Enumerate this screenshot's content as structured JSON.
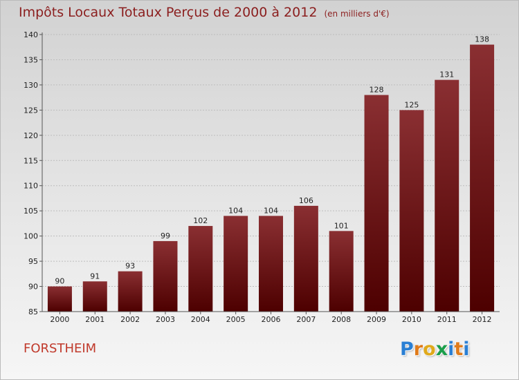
{
  "title": {
    "main": "Impôts Locaux Totaux Perçus de 2000 à 2012",
    "unit": "(en milliers d'€)"
  },
  "commune": "FORSTHEIM",
  "logo": {
    "letters": [
      "P",
      "r",
      "o",
      "x",
      "i",
      "t",
      "i"
    ],
    "colors": [
      "#2a7fd4",
      "#e07b1a",
      "#e0a91a",
      "#1a9e4a",
      "#2a7fd4",
      "#e07b1a",
      "#2a7fd4"
    ]
  },
  "chart_data": {
    "type": "bar",
    "title": "Impôts Locaux Totaux Perçus de 2000 à 2012",
    "xlabel": "",
    "ylabel": "",
    "categories": [
      "2000",
      "2001",
      "2002",
      "2003",
      "2004",
      "2005",
      "2006",
      "2007",
      "2008",
      "2009",
      "2010",
      "2011",
      "2012"
    ],
    "values": [
      90,
      91,
      93,
      99,
      102,
      104,
      104,
      106,
      101,
      128,
      125,
      131,
      138
    ],
    "ylim": [
      85,
      140
    ],
    "yticks": [
      85,
      90,
      95,
      100,
      105,
      110,
      115,
      120,
      125,
      130,
      135,
      140
    ],
    "grid": true,
    "bar_color": "#6e0f12"
  }
}
